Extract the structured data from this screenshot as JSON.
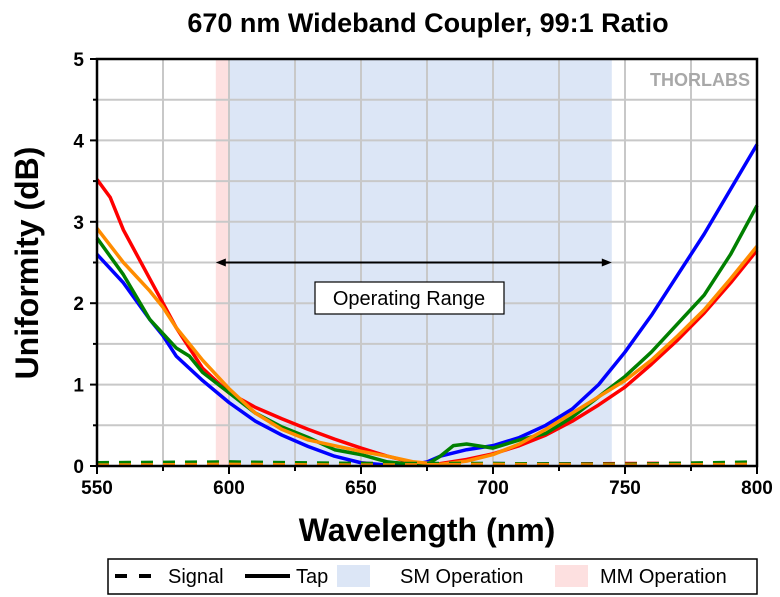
{
  "chart_data": {
    "type": "line",
    "title": "670 nm Wideband Coupler, 99:1 Ratio",
    "xlabel": "Wavelength (nm)",
    "ylabel": "Uniformity (dB)",
    "xlim": [
      550,
      800
    ],
    "ylim": [
      0,
      5
    ],
    "xticks": [
      "550",
      "600",
      "650",
      "700",
      "750",
      "800"
    ],
    "yticks": [
      "0",
      "1",
      "2",
      "3",
      "4",
      "5"
    ],
    "grid": true,
    "logo": "THORLABS",
    "annotation": {
      "text": "Operating Range",
      "arrow_from": 595,
      "arrow_to": 745,
      "arrow_y": 2.5
    },
    "regions": [
      {
        "name": "SM Operation",
        "from": 600,
        "to": 745,
        "color": "#dce6f6"
      },
      {
        "name": "MM Operation",
        "from": 595,
        "to": 600,
        "color": "#fde0e0"
      }
    ],
    "legend": {
      "placement": "bottom",
      "items": [
        {
          "label": "Signal",
          "style": "dashed"
        },
        {
          "label": "Tap",
          "style": "solid"
        },
        {
          "label": "SM Operation",
          "color": "#dce6f6"
        },
        {
          "label": "MM Operation",
          "color": "#fde0e0"
        }
      ]
    },
    "series": [
      {
        "color": "#0000ff",
        "style": "solid",
        "x": [
          550,
          560,
          570,
          575,
          580,
          590,
          600,
          610,
          620,
          630,
          640,
          650,
          660,
          670,
          675,
          680,
          690,
          700,
          710,
          720,
          730,
          740,
          750,
          760,
          770,
          780,
          790,
          800
        ],
        "y": [
          2.6,
          2.25,
          1.8,
          1.6,
          1.35,
          1.05,
          0.78,
          0.55,
          0.38,
          0.24,
          0.12,
          0.04,
          0.01,
          0.02,
          0.05,
          0.12,
          0.2,
          0.25,
          0.35,
          0.5,
          0.7,
          1.0,
          1.4,
          1.85,
          2.35,
          2.85,
          3.4,
          3.95
        ]
      },
      {
        "color": "#ff0000",
        "style": "solid",
        "x": [
          550,
          555,
          560,
          570,
          575,
          580,
          590,
          600,
          610,
          620,
          630,
          640,
          650,
          660,
          670,
          675,
          680,
          690,
          700,
          710,
          720,
          730,
          740,
          750,
          760,
          770,
          780,
          790,
          800
        ],
        "y": [
          3.52,
          3.3,
          2.9,
          2.3,
          2.0,
          1.7,
          1.2,
          0.9,
          0.72,
          0.58,
          0.45,
          0.33,
          0.22,
          0.12,
          0.04,
          0.01,
          0.03,
          0.08,
          0.15,
          0.25,
          0.38,
          0.55,
          0.75,
          0.97,
          1.25,
          1.55,
          1.88,
          2.25,
          2.65
        ]
      },
      {
        "color": "#008000",
        "style": "solid",
        "x": [
          550,
          560,
          570,
          580,
          585,
          590,
          600,
          610,
          620,
          630,
          640,
          650,
          660,
          670,
          675,
          680,
          685,
          690,
          700,
          710,
          720,
          730,
          740,
          750,
          760,
          770,
          780,
          790,
          800
        ],
        "y": [
          2.8,
          2.35,
          1.8,
          1.45,
          1.35,
          1.15,
          0.9,
          0.65,
          0.48,
          0.35,
          0.2,
          0.14,
          0.05,
          0.02,
          0.02,
          0.12,
          0.25,
          0.27,
          0.22,
          0.32,
          0.4,
          0.6,
          0.85,
          1.1,
          1.4,
          1.75,
          2.1,
          2.6,
          3.2
        ]
      },
      {
        "color": "#ff8c00",
        "style": "solid",
        "x": [
          550,
          560,
          570,
          575,
          580,
          590,
          600,
          610,
          620,
          630,
          640,
          650,
          660,
          670,
          680,
          690,
          700,
          710,
          720,
          730,
          740,
          750,
          760,
          770,
          780,
          790,
          800
        ],
        "y": [
          2.92,
          2.5,
          2.15,
          1.95,
          1.7,
          1.3,
          0.95,
          0.65,
          0.45,
          0.32,
          0.25,
          0.18,
          0.12,
          0.05,
          0.02,
          0.06,
          0.14,
          0.27,
          0.45,
          0.65,
          0.85,
          1.05,
          1.3,
          1.6,
          1.92,
          2.3,
          2.7
        ]
      },
      {
        "color": "#0000ff",
        "style": "dashed",
        "x": [
          550,
          600,
          650,
          700,
          750,
          800
        ],
        "y": [
          0.02,
          0.03,
          0.02,
          0.03,
          0.02,
          0.03
        ]
      },
      {
        "color": "#ff0000",
        "style": "dashed",
        "x": [
          550,
          600,
          650,
          700,
          750,
          800
        ],
        "y": [
          0.03,
          0.04,
          0.03,
          0.02,
          0.03,
          0.04
        ]
      },
      {
        "color": "#008000",
        "style": "dashed",
        "x": [
          550,
          600,
          650,
          700,
          750,
          800
        ],
        "y": [
          0.04,
          0.05,
          0.03,
          0.03,
          0.02,
          0.05
        ]
      },
      {
        "color": "#ff8c00",
        "style": "dashed",
        "x": [
          550,
          600,
          650,
          700,
          750,
          800
        ],
        "y": [
          0.01,
          0.02,
          0.01,
          0.02,
          0.01,
          0.02
        ]
      }
    ]
  }
}
